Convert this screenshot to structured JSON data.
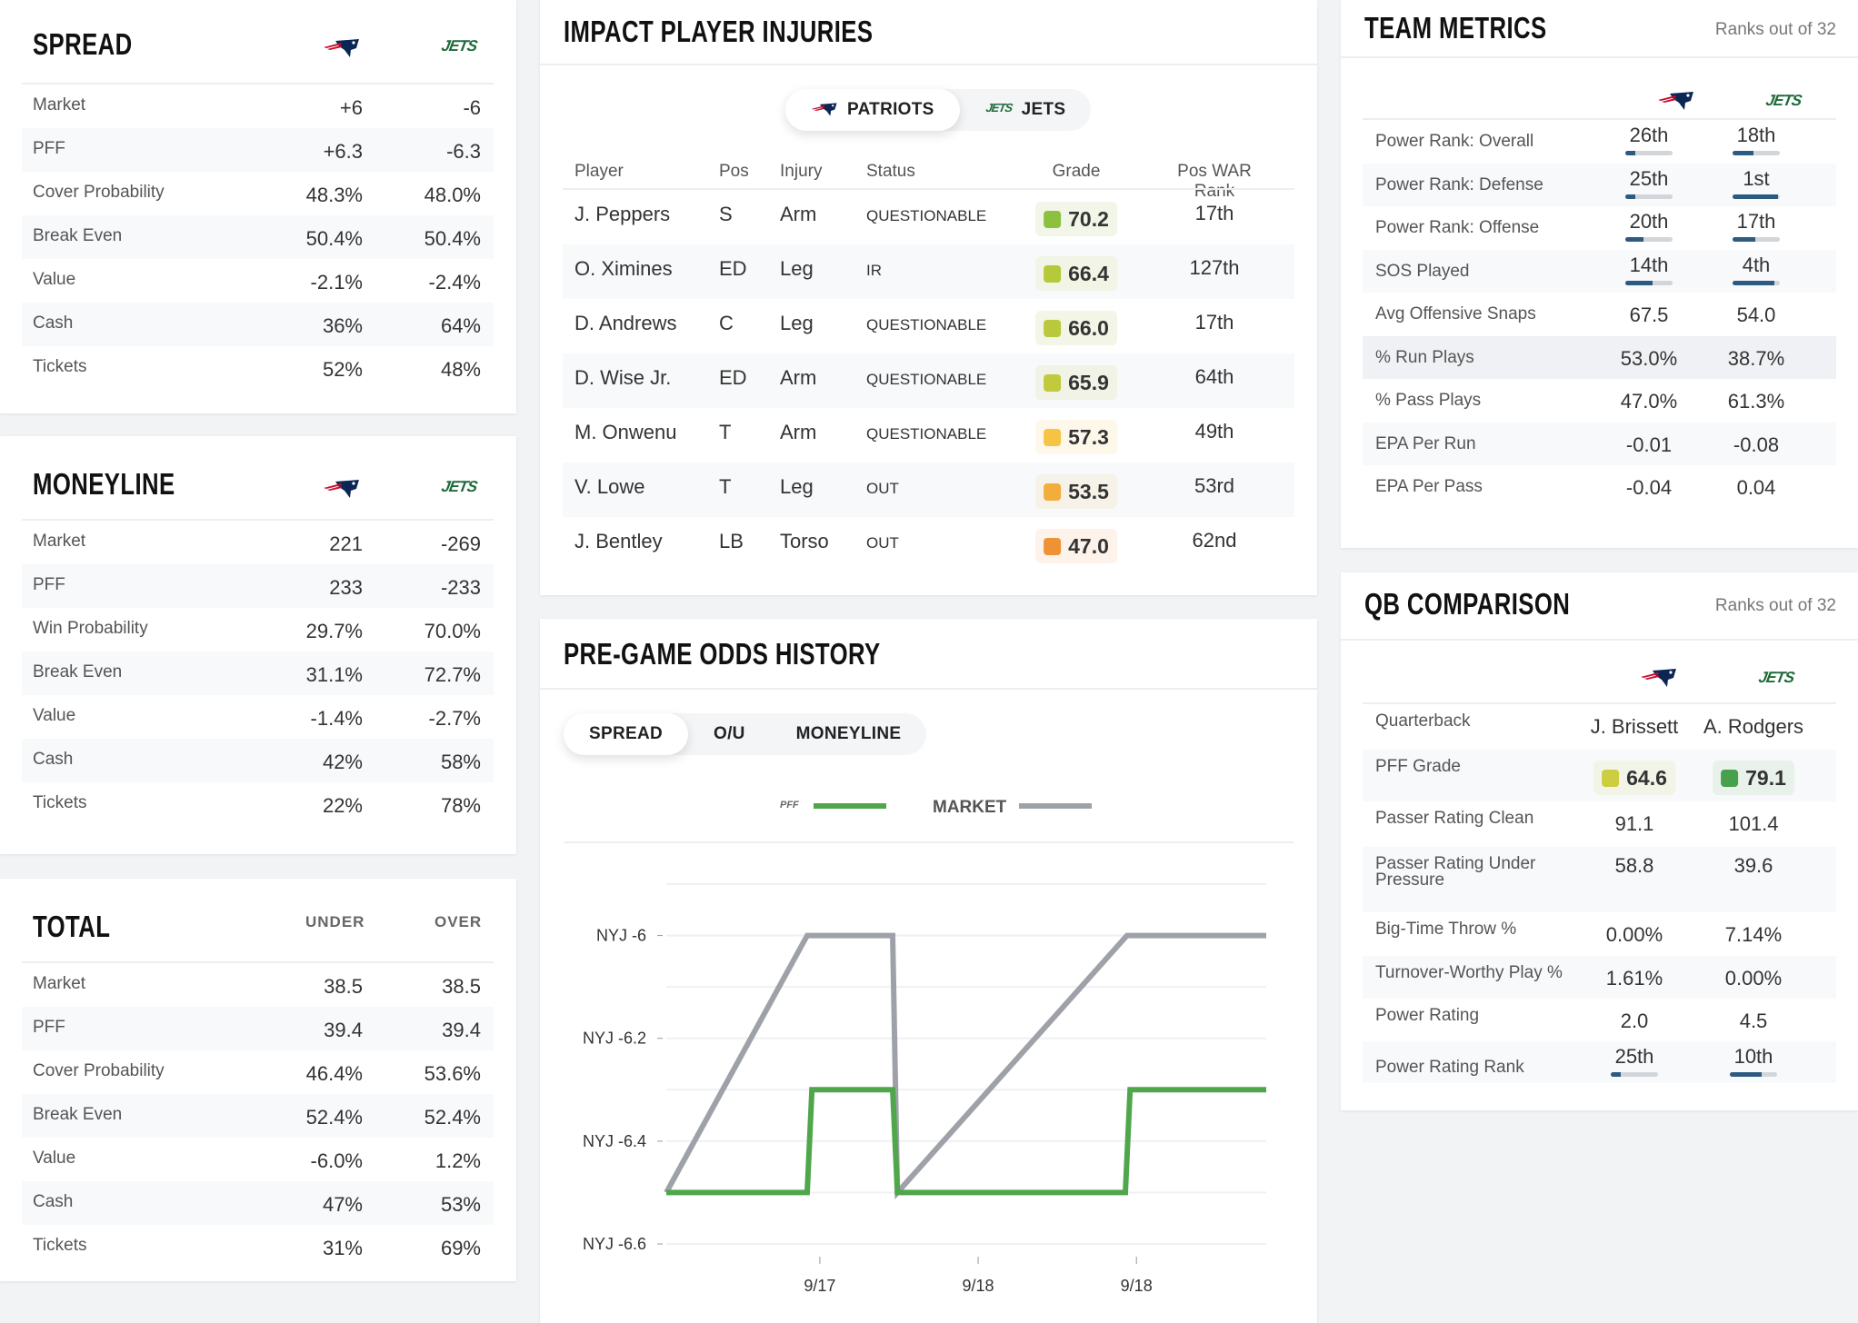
{
  "colors": {
    "patriots_navy": "#0b2654",
    "patriots_red": "#c8102e",
    "jets_green": "#1f6b3b",
    "rank_bar": "#2d5a80",
    "rank_track": "#d2d5da",
    "pff_line": "#4fa64b",
    "market_line": "#9ea2a8"
  },
  "logos": {
    "jets": "JETS",
    "pff": "PFF"
  },
  "spread": {
    "title": "SPREAD",
    "rows": [
      {
        "label": "Market",
        "a": "+6",
        "b": "-6"
      },
      {
        "label": "PFF",
        "a": "+6.3",
        "b": "-6.3"
      },
      {
        "label": "Cover Probability",
        "a": "48.3%",
        "b": "48.0%"
      },
      {
        "label": "Break Even",
        "a": "50.4%",
        "b": "50.4%"
      },
      {
        "label": "Value",
        "a": "-2.1%",
        "b": "-2.4%"
      },
      {
        "label": "Cash",
        "a": "36%",
        "b": "64%"
      },
      {
        "label": "Tickets",
        "a": "52%",
        "b": "48%"
      }
    ]
  },
  "moneyline": {
    "title": "MONEYLINE",
    "rows": [
      {
        "label": "Market",
        "a": "221",
        "b": "-269"
      },
      {
        "label": "PFF",
        "a": "233",
        "b": "-233"
      },
      {
        "label": "Win Probability",
        "a": "29.7%",
        "b": "70.0%"
      },
      {
        "label": "Break Even",
        "a": "31.1%",
        "b": "72.7%"
      },
      {
        "label": "Value",
        "a": "-1.4%",
        "b": "-2.7%"
      },
      {
        "label": "Cash",
        "a": "42%",
        "b": "58%"
      },
      {
        "label": "Tickets",
        "a": "22%",
        "b": "78%"
      }
    ]
  },
  "total": {
    "title": "TOTAL",
    "col_a": "UNDER",
    "col_b": "OVER",
    "rows": [
      {
        "label": "Market",
        "a": "38.5",
        "b": "38.5"
      },
      {
        "label": "PFF",
        "a": "39.4",
        "b": "39.4"
      },
      {
        "label": "Cover Probability",
        "a": "46.4%",
        "b": "53.6%"
      },
      {
        "label": "Break Even",
        "a": "52.4%",
        "b": "52.4%"
      },
      {
        "label": "Value",
        "a": "-6.0%",
        "b": "1.2%"
      },
      {
        "label": "Cash",
        "a": "47%",
        "b": "53%"
      },
      {
        "label": "Tickets",
        "a": "31%",
        "b": "69%"
      }
    ]
  },
  "injuries": {
    "title": "IMPACT PLAYER INJURIES",
    "tabs": [
      {
        "label": "PATRIOTS",
        "active": true
      },
      {
        "label": "JETS",
        "active": false
      }
    ],
    "columns": [
      "Player",
      "Pos",
      "Injury",
      "Status",
      "Grade",
      "Pos WAR Rank"
    ],
    "rows": [
      {
        "player": "J. Peppers",
        "pos": "S",
        "injury": "Arm",
        "status": "QUESTIONABLE",
        "grade": "70.2",
        "grade_color": "#8cc13f",
        "grade_bg": "#f1f6e8",
        "rank": "17th"
      },
      {
        "player": "O. Ximines",
        "pos": "ED",
        "injury": "Leg",
        "status": "IR",
        "grade": "66.4",
        "grade_color": "#b5c93a",
        "grade_bg": "#f2f5e6",
        "rank": "127th"
      },
      {
        "player": "D. Andrews",
        "pos": "C",
        "injury": "Leg",
        "status": "QUESTIONABLE",
        "grade": "66.0",
        "grade_color": "#b9c93b",
        "grade_bg": "#f3f5e6",
        "rank": "17th"
      },
      {
        "player": "D. Wise Jr.",
        "pos": "ED",
        "injury": "Arm",
        "status": "QUESTIONABLE",
        "grade": "65.9",
        "grade_color": "#c1c93c",
        "grade_bg": "#f1f3e6",
        "rank": "64th"
      },
      {
        "player": "M. Onwenu",
        "pos": "T",
        "injury": "Arm",
        "status": "QUESTIONABLE",
        "grade": "57.3",
        "grade_color": "#f6c344",
        "grade_bg": "#fdf8ea",
        "rank": "49th"
      },
      {
        "player": "V. Lowe",
        "pos": "T",
        "injury": "Leg",
        "status": "OUT",
        "grade": "53.5",
        "grade_color": "#f2ad3d",
        "grade_bg": "#f7f2e8",
        "rank": "53rd"
      },
      {
        "player": "J. Bentley",
        "pos": "LB",
        "injury": "Torso",
        "status": "OUT",
        "grade": "47.0",
        "grade_color": "#ee9236",
        "grade_bg": "#fdf3ea",
        "rank": "62nd"
      }
    ]
  },
  "odds": {
    "title": "PRE-GAME ODDS HISTORY",
    "tabs": [
      {
        "label": "SPREAD",
        "active": true
      },
      {
        "label": "O/U",
        "active": false
      },
      {
        "label": "MONEYLINE",
        "active": false
      }
    ]
  },
  "chart_data": {
    "type": "line",
    "legend_placement": "top",
    "grid": true,
    "y_tick_labels": [
      "NYJ -6",
      "NYJ -6.2",
      "NYJ -6.4",
      "NYJ -6.6"
    ],
    "y_ticks": [
      -6,
      -6.2,
      -6.4,
      -6.6
    ],
    "ylim": [
      -6.6,
      -5.9
    ],
    "x_tick_labels": [
      "9/17",
      "9/18",
      "9/18"
    ],
    "x_ticks": [
      1,
      2,
      3
    ],
    "xlim": [
      0.03,
      3.82
    ],
    "series": [
      {
        "name": "PFF",
        "color": "#4fa64b",
        "points": [
          [
            0.03,
            -6.5
          ],
          [
            0.92,
            -6.5
          ],
          [
            0.95,
            -6.3
          ],
          [
            1.46,
            -6.3
          ],
          [
            1.49,
            -6.5
          ],
          [
            2.93,
            -6.5
          ],
          [
            2.96,
            -6.3
          ],
          [
            3.82,
            -6.3
          ]
        ]
      },
      {
        "name": "MARKET",
        "color": "#9ea2a8",
        "points": [
          [
            0.03,
            -6.5
          ],
          [
            0.92,
            -6.0
          ],
          [
            1.46,
            -6.0
          ],
          [
            1.49,
            -6.5
          ],
          [
            2.94,
            -6.0
          ],
          [
            3.82,
            -6.0
          ]
        ]
      }
    ]
  },
  "team_metrics": {
    "title": "TEAM METRICS",
    "subtitle": "Ranks out of 32",
    "rows": [
      {
        "label": "Power Rank: Overall",
        "a": "26th",
        "b": "18th",
        "fa": 0.22,
        "fb": 0.44
      },
      {
        "label": "Power Rank: Defense",
        "a": "25th",
        "b": "1st",
        "fa": 0.22,
        "fb": 0.97
      },
      {
        "label": "Power Rank: Offense",
        "a": "20th",
        "b": "17th",
        "fa": 0.38,
        "fb": 0.48
      },
      {
        "label": "SOS Played",
        "a": "14th",
        "b": "4th",
        "fa": 0.57,
        "fb": 0.88
      },
      {
        "label": "Avg Offensive Snaps",
        "a": "67.5",
        "b": "54.0"
      },
      {
        "label": "% Run Plays",
        "a": "53.0%",
        "b": "38.7%",
        "highlight": true
      },
      {
        "label": "% Pass Plays",
        "a": "47.0%",
        "b": "61.3%"
      },
      {
        "label": "EPA Per Run",
        "a": "-0.01",
        "b": "-0.08"
      },
      {
        "label": "EPA Per Pass",
        "a": "-0.04",
        "b": "0.04"
      }
    ]
  },
  "qb": {
    "title": "QB COMPARISON",
    "subtitle": "Ranks out of 32",
    "rows": [
      {
        "label": "Quarterback",
        "a": "J. Brissett",
        "b": "A. Rodgers"
      },
      {
        "label": "PFF Grade",
        "a": "64.6",
        "b": "79.1",
        "grade": true,
        "ca": "#cccd3f",
        "ba": "#f3f4e8",
        "cb": "#46a04c",
        "bb": "#e8f2ea"
      },
      {
        "label": "Passer Rating Clean",
        "a": "91.1",
        "b": "101.4"
      },
      {
        "label": "Passer Rating Under Pressure",
        "a": "58.8",
        "b": "39.6"
      },
      {
        "label": "Big-Time Throw %",
        "a": "0.00%",
        "b": "7.14%"
      },
      {
        "label": "Turnover-Worthy Play %",
        "a": "1.61%",
        "b": "0.00%"
      },
      {
        "label": "Power Rating",
        "a": "2.0",
        "b": "4.5"
      },
      {
        "label": "Power Rating Rank",
        "a": "25th",
        "b": "10th",
        "fa": 0.22,
        "fb": 0.68
      }
    ]
  }
}
